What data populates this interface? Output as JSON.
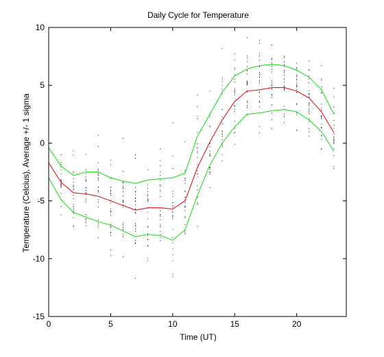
{
  "chart_data": {
    "type": "line",
    "title": "Daily Cycle for Temperature",
    "xlabel": "Time (UT)",
    "ylabel": "Temperature (Celcius), Average +/- 1 sigma",
    "xlim": [
      0,
      24
    ],
    "ylim": [
      -15,
      10
    ],
    "xticks": [
      0,
      5,
      10,
      15,
      20
    ],
    "yticks": [
      -15,
      -10,
      -5,
      0,
      5,
      10
    ],
    "grid": false,
    "legend": "none",
    "x": [
      0,
      1,
      2,
      3,
      4,
      5,
      6,
      7,
      8,
      9,
      10,
      11,
      12,
      13,
      14,
      15,
      16,
      17,
      18,
      19,
      20,
      21,
      22,
      23
    ],
    "series": [
      {
        "role": "mean",
        "color": "#e8141c",
        "values": [
          -1.7,
          -3.4,
          -4.3,
          -4.4,
          -4.6,
          -5.0,
          -5.4,
          -5.8,
          -5.6,
          -5.6,
          -5.7,
          -5.0,
          -2.1,
          0.1,
          2.0,
          3.6,
          4.5,
          4.6,
          4.8,
          4.8,
          4.5,
          3.9,
          2.7,
          0.9
        ]
      },
      {
        "role": "mean-plus-1-sigma",
        "color": "#1fe01f",
        "values": [
          -0.4,
          -2.0,
          -2.8,
          -2.5,
          -2.5,
          -3.0,
          -3.3,
          -3.5,
          -3.2,
          -3.1,
          -3.0,
          -2.6,
          0.6,
          2.5,
          4.4,
          5.8,
          6.4,
          6.7,
          6.8,
          6.7,
          6.3,
          5.7,
          4.6,
          2.5
        ]
      },
      {
        "role": "mean-minus-1-sigma",
        "color": "#1fe01f",
        "values": [
          -3.0,
          -4.9,
          -6.0,
          -6.4,
          -6.8,
          -7.1,
          -7.6,
          -8.1,
          -7.9,
          -8.0,
          -8.4,
          -7.5,
          -4.5,
          -1.9,
          0.0,
          1.4,
          2.5,
          2.6,
          2.8,
          2.9,
          2.7,
          2.0,
          1.0,
          -0.7
        ]
      }
    ],
    "scatter": {
      "color": "#000000",
      "points_per_hour": 24,
      "description_values_note": ""
    }
  }
}
